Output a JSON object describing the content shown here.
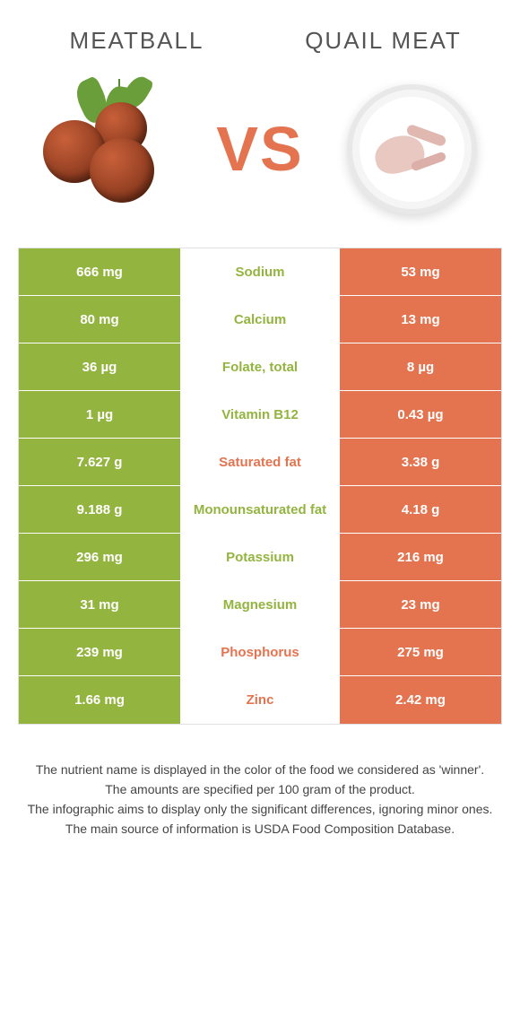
{
  "left_food": "Meatball",
  "right_food": "Quail meat",
  "vs_label": "VS",
  "colors": {
    "left_bg": "#94b440",
    "right_bg": "#e47450",
    "vs_color": "#e47450",
    "title_color": "#555555",
    "footer_color": "#444444",
    "border": "#e0e0e0",
    "row_text": "#ffffff"
  },
  "rows": [
    {
      "left": "666 mg",
      "label": "Sodium",
      "right": "53 mg",
      "winner": "left"
    },
    {
      "left": "80 mg",
      "label": "Calcium",
      "right": "13 mg",
      "winner": "left"
    },
    {
      "left": "36 µg",
      "label": "Folate, total",
      "right": "8 µg",
      "winner": "left"
    },
    {
      "left": "1 µg",
      "label": "Vitamin B12",
      "right": "0.43 µg",
      "winner": "left"
    },
    {
      "left": "7.627 g",
      "label": "Saturated fat",
      "right": "3.38 g",
      "winner": "right"
    },
    {
      "left": "9.188 g",
      "label": "Monounsaturated fat",
      "right": "4.18 g",
      "winner": "left"
    },
    {
      "left": "296 mg",
      "label": "Potassium",
      "right": "216 mg",
      "winner": "left"
    },
    {
      "left": "31 mg",
      "label": "Magnesium",
      "right": "23 mg",
      "winner": "left"
    },
    {
      "left": "239 mg",
      "label": "Phosphorus",
      "right": "275 mg",
      "winner": "right"
    },
    {
      "left": "1.66 mg",
      "label": "Zinc",
      "right": "2.42 mg",
      "winner": "right"
    }
  ],
  "footer": [
    "The nutrient name is displayed in the color of the food we considered as 'winner'.",
    "The amounts are specified per 100 gram of the product.",
    "The infographic aims to display only the significant differences, ignoring minor ones.",
    "The main source of information is USDA Food Composition Database."
  ]
}
